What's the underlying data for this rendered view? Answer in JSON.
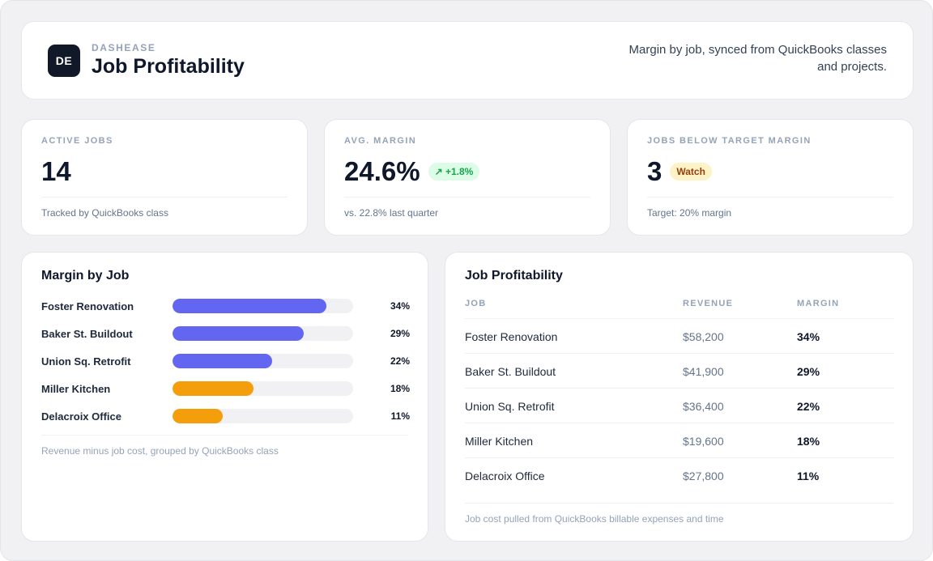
{
  "header": {
    "logo_text": "DE",
    "brand": "DASHEASE",
    "title": "Job Profitability",
    "subtitle": "Margin by job, synced from QuickBooks classes and projects."
  },
  "kpis": [
    {
      "label": "ACTIVE JOBS",
      "value": "14",
      "badge": "",
      "footnote": "Tracked by QuickBooks class"
    },
    {
      "label": "AVG. MARGIN",
      "value": "24.6%",
      "badge": "↗ +1.8%",
      "badge_color": "#16a34a",
      "footnote": "vs. 22.8% last quarter"
    },
    {
      "label": "JOBS BELOW TARGET MARGIN",
      "value": "3",
      "badge": "Watch",
      "badge_color": "#92400e",
      "footnote": "Target: 20% margin"
    }
  ],
  "margin_by_job": {
    "title": "Margin by Job",
    "rows": [
      {
        "job": "Foster Renovation",
        "label": "34%",
        "fill_fraction": 0.85,
        "color": "#6366f1"
      },
      {
        "job": "Baker St. Buildout",
        "label": "29%",
        "fill_fraction": 0.725,
        "color": "#6366f1"
      },
      {
        "job": "Union Sq. Retrofit",
        "label": "22%",
        "fill_fraction": 0.55,
        "color": "#6366f1"
      },
      {
        "job": "Miller Kitchen",
        "label": "18%",
        "fill_fraction": 0.45,
        "color": "#f59e0b"
      },
      {
        "job": "Delacroix Office",
        "label": "11%",
        "fill_fraction": 0.28,
        "color": "#f59e0b"
      }
    ],
    "footnote": "Revenue minus job cost, grouped by QuickBooks class"
  },
  "job_table": {
    "title": "Job Profitability",
    "columns": [
      "JOB",
      "REVENUE",
      "MARGIN"
    ],
    "rows": [
      {
        "job": "Foster Renovation",
        "revenue": "$58,200",
        "margin": "34%"
      },
      {
        "job": "Baker St. Buildout",
        "revenue": "$41,900",
        "margin": "29%"
      },
      {
        "job": "Union Sq. Retrofit",
        "revenue": "$36,400",
        "margin": "22%"
      },
      {
        "job": "Miller Kitchen",
        "revenue": "$19,600",
        "margin": "18%"
      },
      {
        "job": "Delacroix Office",
        "revenue": "$27,800",
        "margin": "11%"
      }
    ],
    "footnote": "Job cost pulled from QuickBooks billable expenses and time"
  }
}
